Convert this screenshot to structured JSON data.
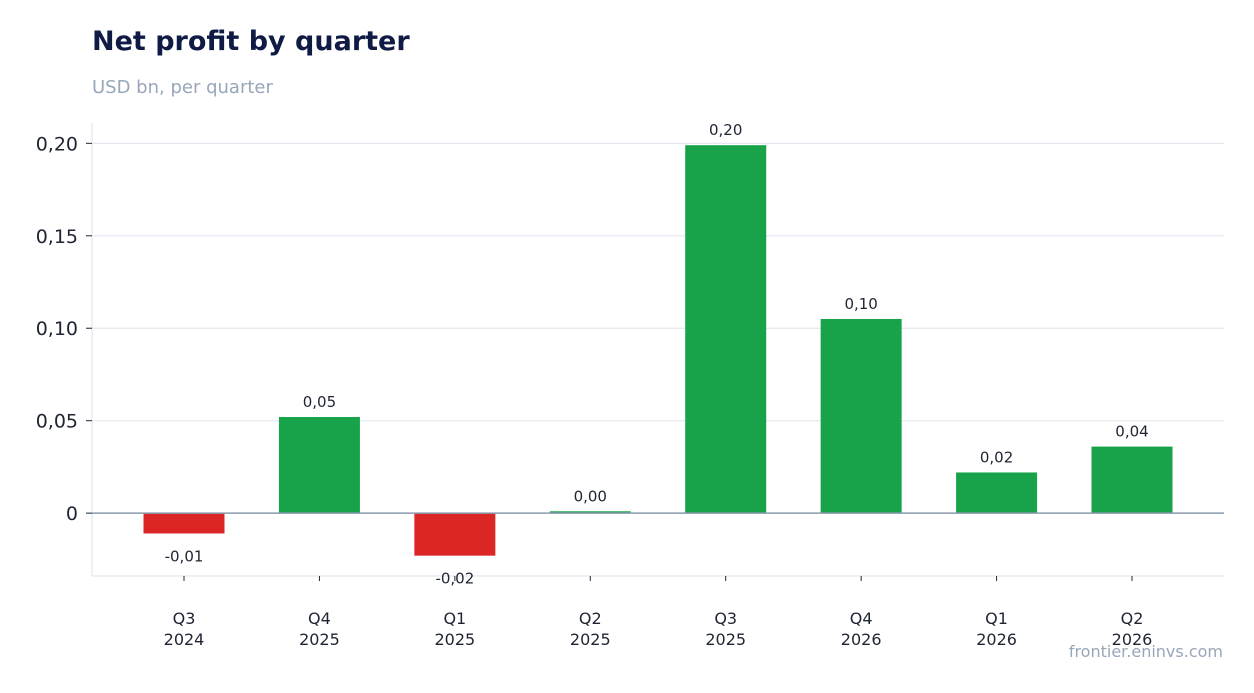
{
  "title": "Net profit by quarter",
  "subtitle": "USD bn, per quarter",
  "source": "frontier.eninvs.com",
  "colors": {
    "positive": "#18a34a",
    "negative": "#dc2626",
    "grid": "#e3e7ef",
    "zero_line": "#8a9ab0"
  },
  "chart_data": {
    "type": "bar",
    "title": "Net profit by quarter",
    "subtitle": "USD bn, per quarter",
    "categories": [
      [
        "Q3",
        "2024"
      ],
      [
        "Q4",
        "2025"
      ],
      [
        "Q1",
        "2025"
      ],
      [
        "Q2",
        "2025"
      ],
      [
        "Q3",
        "2025"
      ],
      [
        "Q4",
        "2026"
      ],
      [
        "Q1",
        "2026"
      ],
      [
        "Q2",
        "2026"
      ]
    ],
    "values": [
      -0.011,
      0.052,
      -0.023,
      0.001,
      0.199,
      0.105,
      0.022,
      0.036
    ],
    "data_labels": [
      "-0,01",
      "0,05",
      "-0,02",
      "0,00",
      "0,20",
      "0,10",
      "0,02",
      "0,04"
    ],
    "y_ticks": [
      0,
      0.05,
      0.1,
      0.15,
      0.2
    ],
    "y_tick_labels": [
      "0",
      "0,05",
      "0,10",
      "0,15",
      "0,20"
    ],
    "ylim": [
      -0.034,
      0.211
    ],
    "xlabel": "",
    "ylabel": "",
    "grid": true,
    "legend": "none"
  }
}
